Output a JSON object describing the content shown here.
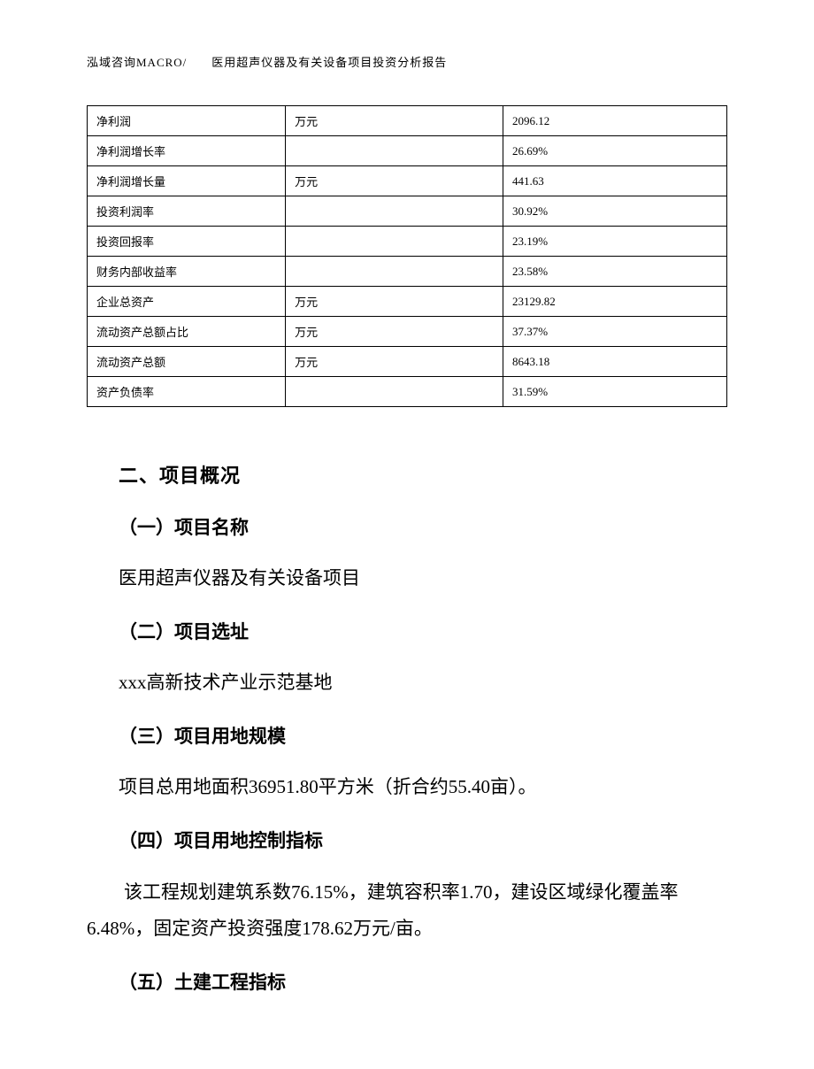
{
  "header": {
    "text": "泓域咨询MACRO/　　医用超声仪器及有关设备项目投资分析报告"
  },
  "table": {
    "columns": [
      "label",
      "unit",
      "value"
    ],
    "rows": [
      {
        "label": "净利润",
        "unit": "万元",
        "value": "2096.12"
      },
      {
        "label": "净利润增长率",
        "unit": "",
        "value": "26.69%"
      },
      {
        "label": "净利润增长量",
        "unit": "万元",
        "value": "441.63"
      },
      {
        "label": "投资利润率",
        "unit": "",
        "value": "30.92%"
      },
      {
        "label": "投资回报率",
        "unit": "",
        "value": "23.19%"
      },
      {
        "label": "财务内部收益率",
        "unit": "",
        "value": "23.58%"
      },
      {
        "label": "企业总资产",
        "unit": "万元",
        "value": "23129.82"
      },
      {
        "label": "流动资产总额占比",
        "unit": "万元",
        "value": "37.37%"
      },
      {
        "label": "流动资产总额",
        "unit": "万元",
        "value": "8643.18"
      },
      {
        "label": "资产负债率",
        "unit": "",
        "value": "31.59%"
      }
    ]
  },
  "sections": {
    "title": "二、项目概况",
    "sub1": {
      "title": "（一）项目名称",
      "text": "医用超声仪器及有关设备项目"
    },
    "sub2": {
      "title": "（二）项目选址",
      "text": "xxx高新技术产业示范基地"
    },
    "sub3": {
      "title": "（三）项目用地规模",
      "text": "项目总用地面积36951.80平方米（折合约55.40亩）。"
    },
    "sub4": {
      "title": "（四）项目用地控制指标",
      "text": "该工程规划建筑系数76.15%，建筑容积率1.70，建设区域绿化覆盖率6.48%，固定资产投资强度178.62万元/亩。"
    },
    "sub5": {
      "title": "（五）土建工程指标"
    }
  },
  "styling": {
    "page_bg": "#ffffff",
    "text_color": "#000000",
    "border_color": "#000000",
    "header_fontsize": 13,
    "table_fontsize": 13,
    "section_title_fontsize": 22,
    "subsection_title_fontsize": 21,
    "body_fontsize": 21
  }
}
